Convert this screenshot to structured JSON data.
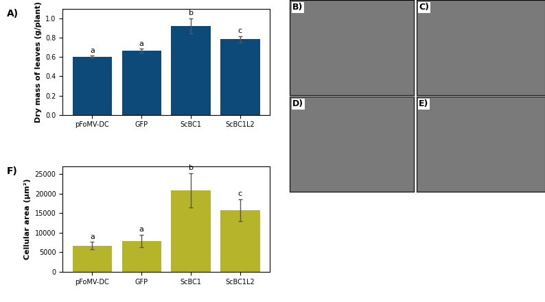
{
  "chart_data": [
    {
      "type": "bar",
      "panel": "A)",
      "y_label": "Dry mass of leaves (g/plant)",
      "categories": [
        "pFoMV-DC",
        "GFP",
        "ScBC1",
        "ScBC1L2"
      ],
      "values": [
        0.605,
        0.665,
        0.925,
        0.785
      ],
      "errors": [
        0.01,
        0.02,
        0.08,
        0.03
      ],
      "significance": [
        "a",
        "a",
        "b",
        "c"
      ],
      "color": "#0d4a7a",
      "ylim": [
        0,
        1.1
      ],
      "yticks": [
        0.0,
        0.2,
        0.4,
        0.6,
        0.8,
        1.0
      ]
    },
    {
      "type": "bar",
      "panel": "F)",
      "y_label": "Cellular area (µm²)",
      "categories": [
        "pFoMV-DC",
        "GFP",
        "ScBC1",
        "ScBC1L2"
      ],
      "values": [
        6700,
        7800,
        20800,
        15800
      ],
      "errors": [
        900,
        1600,
        4400,
        2800
      ],
      "significance": [
        "a",
        "a",
        "b",
        "c"
      ],
      "color": "#b5b42a",
      "ylim": [
        0,
        27000
      ],
      "yticks": [
        0,
        5000,
        10000,
        15000,
        20000,
        25000
      ]
    }
  ],
  "images": [
    {
      "panel": "B)"
    },
    {
      "panel": "C)"
    },
    {
      "panel": "D)"
    },
    {
      "panel": "E)"
    }
  ]
}
